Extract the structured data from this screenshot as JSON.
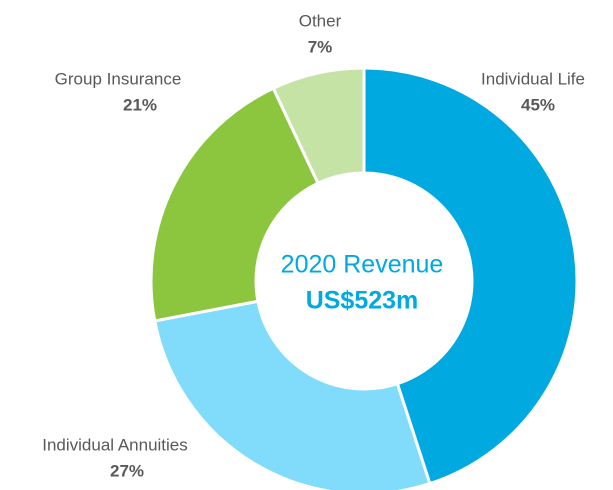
{
  "chart_data": {
    "type": "donut",
    "center_title": "2020 Revenue",
    "center_value": "US$523m",
    "categories": [
      "Individual Life",
      "Individual Annuities",
      "Group Insurance",
      "Other"
    ],
    "values": [
      45,
      27,
      21,
      7
    ],
    "value_labels": [
      "45%",
      "27%",
      "21%",
      "7%"
    ],
    "colors": [
      "#00a9e0",
      "#80dcfa",
      "#8cc63f",
      "#c5e3a5"
    ]
  }
}
